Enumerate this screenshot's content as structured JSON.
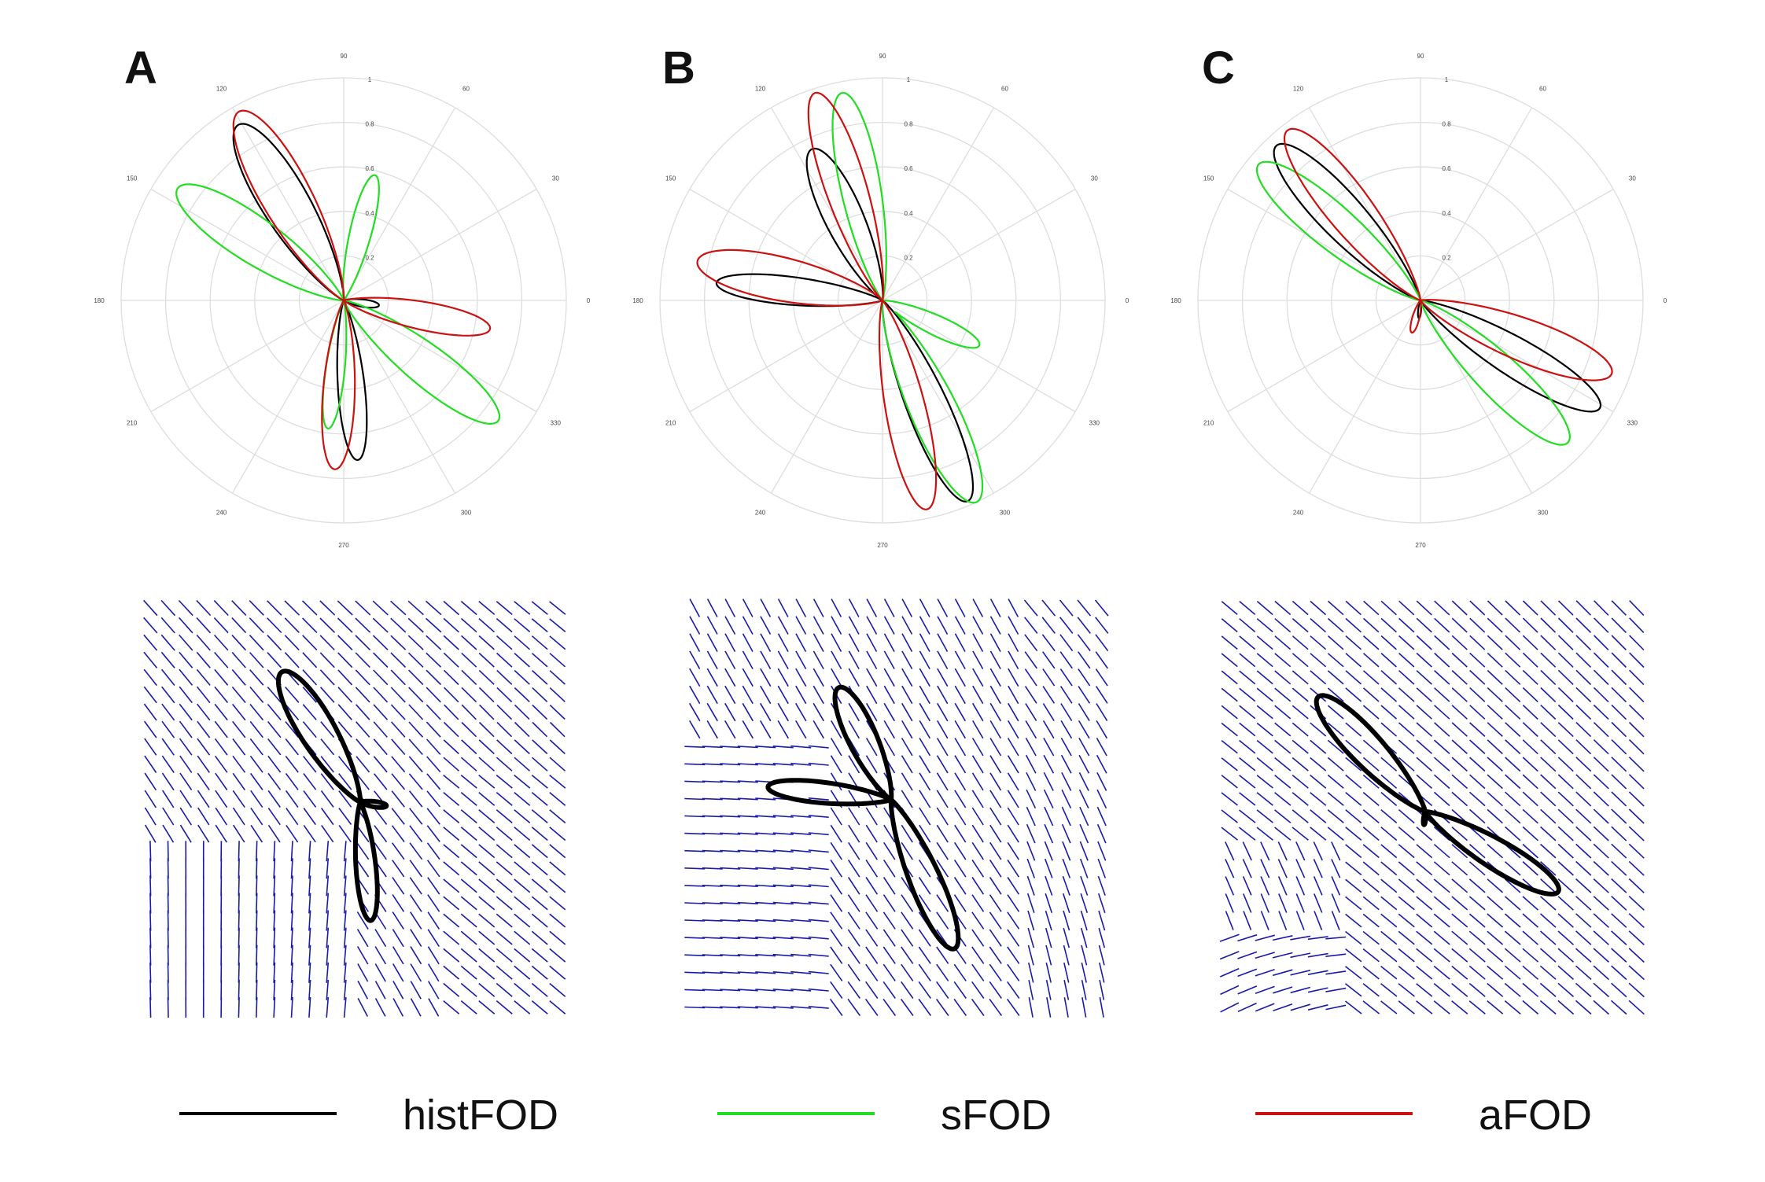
{
  "panels": [
    "A",
    "B",
    "C"
  ],
  "angle_ticks": [
    "0",
    "30",
    "60",
    "90",
    "120",
    "150",
    "180",
    "210",
    "240",
    "270",
    "300",
    "330"
  ],
  "radius_ticks": [
    "0.2",
    "0.4",
    "0.6",
    "0.8",
    "1"
  ],
  "legend": [
    {
      "label": "histFOD",
      "color": "#000000"
    },
    {
      "label": "sFOD",
      "color": "#22dd22"
    },
    {
      "label": "aFOD",
      "color": "#cc1111"
    }
  ],
  "colors": {
    "grid": "#dddddd",
    "field": "#1a1aaa",
    "histFOD": "#000000",
    "sFOD": "#22dd22",
    "aFOD": "#cc1111"
  },
  "chart_data": [
    {
      "type": "polar-line",
      "panel": "A",
      "rlim": [
        0,
        1
      ],
      "series": [
        {
          "name": "histFOD",
          "lobes": [
            {
              "angle": 121,
              "peak": 0.92,
              "width": 11
            },
            {
              "angle": 275,
              "peak": 0.72,
              "width": 8
            },
            {
              "angle": 352,
              "peak": 0.16,
              "width": 10
            }
          ]
        },
        {
          "name": "sFOD",
          "lobes": [
            {
              "angle": 146,
              "peak": 0.9,
              "width": 11
            },
            {
              "angle": 76,
              "peak": 0.58,
              "width": 8
            },
            {
              "angle": 322,
              "peak": 0.88,
              "width": 10
            },
            {
              "angle": 263,
              "peak": 0.58,
              "width": 7
            }
          ]
        },
        {
          "name": "aFOD",
          "lobes": [
            {
              "angle": 119,
              "peak": 0.97,
              "width": 11
            },
            {
              "angle": 267,
              "peak": 0.76,
              "width": 9
            },
            {
              "angle": 349,
              "peak": 0.67,
              "width": 9
            }
          ]
        }
      ]
    },
    {
      "type": "polar-line",
      "panel": "B",
      "rlim": [
        0,
        1
      ],
      "series": [
        {
          "name": "histFOD",
          "lobes": [
            {
              "angle": 115,
              "peak": 0.75,
              "width": 11
            },
            {
              "angle": 174,
              "peak": 0.75,
              "width": 8
            },
            {
              "angle": 293,
              "peak": 0.98,
              "width": 9
            }
          ]
        },
        {
          "name": "sFOD",
          "lobes": [
            {
              "angle": 101,
              "peak": 0.95,
              "width": 9
            },
            {
              "angle": 295,
              "peak": 1.0,
              "width": 10
            },
            {
              "angle": 335,
              "peak": 0.48,
              "width": 9
            }
          ]
        },
        {
          "name": "aFOD",
          "lobes": [
            {
              "angle": 108,
              "peak": 0.98,
              "width": 9
            },
            {
              "angle": 168,
              "peak": 0.85,
              "width": 11
            },
            {
              "angle": 282,
              "peak": 0.96,
              "width": 9
            }
          ]
        }
      ]
    },
    {
      "type": "polar-line",
      "panel": "C",
      "rlim": [
        0,
        1
      ],
      "series": [
        {
          "name": "histFOD",
          "lobes": [
            {
              "angle": 133,
              "peak": 0.95,
              "width": 10
            },
            {
              "angle": 329,
              "peak": 0.94,
              "width": 9
            },
            {
              "angle": 265,
              "peak": 0.08,
              "width": 8
            }
          ]
        },
        {
          "name": "sFOD",
          "lobes": [
            {
              "angle": 140,
              "peak": 0.95,
              "width": 10
            },
            {
              "angle": 316,
              "peak": 0.92,
              "width": 10
            }
          ]
        },
        {
          "name": "aFOD",
          "lobes": [
            {
              "angle": 128,
              "peak": 0.97,
              "width": 10
            },
            {
              "angle": 339,
              "peak": 0.92,
              "width": 10
            },
            {
              "angle": 255,
              "peak": 0.15,
              "width": 10
            }
          ]
        }
      ]
    }
  ]
}
